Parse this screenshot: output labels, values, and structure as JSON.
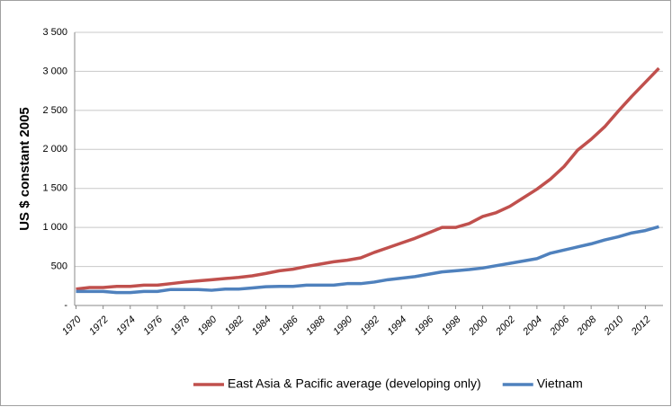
{
  "chart_data": {
    "type": "line",
    "y_label": "US $ constant 2005",
    "x": [
      1970,
      1971,
      1972,
      1973,
      1974,
      1975,
      1976,
      1977,
      1978,
      1979,
      1980,
      1981,
      1982,
      1983,
      1984,
      1985,
      1986,
      1987,
      1988,
      1989,
      1990,
      1991,
      1992,
      1993,
      1994,
      1995,
      1996,
      1997,
      1998,
      1999,
      2000,
      2001,
      2002,
      2003,
      2004,
      2005,
      2006,
      2007,
      2008,
      2009,
      2010,
      2011,
      2012,
      2013
    ],
    "series": [
      {
        "name": "East Asia & Pacific average (developing only)",
        "color": "#c0504d",
        "values": [
          210,
          230,
          230,
          245,
          245,
          260,
          260,
          280,
          300,
          315,
          330,
          345,
          360,
          380,
          410,
          445,
          465,
          500,
          530,
          560,
          580,
          610,
          680,
          740,
          800,
          860,
          930,
          1000,
          1000,
          1050,
          1140,
          1190,
          1270,
          1380,
          1490,
          1620,
          1780,
          1990,
          2130,
          2290,
          2490,
          2680,
          2860,
          3040
        ]
      },
      {
        "name": "Vietnam",
        "color": "#4f81bd",
        "values": [
          180,
          180,
          180,
          165,
          165,
          180,
          180,
          205,
          205,
          205,
          195,
          210,
          210,
          225,
          240,
          245,
          245,
          260,
          260,
          260,
          280,
          280,
          300,
          330,
          350,
          370,
          400,
          430,
          445,
          460,
          480,
          510,
          540,
          570,
          600,
          670,
          710,
          750,
          790,
          840,
          880,
          930,
          960,
          1010
        ]
      }
    ],
    "xlim": [
      1969.9,
      2013.3
    ],
    "xticks": [
      1970,
      1972,
      1974,
      1976,
      1978,
      1980,
      1982,
      1984,
      1986,
      1988,
      1990,
      1992,
      1994,
      1996,
      1998,
      2000,
      2002,
      2004,
      2006,
      2008,
      2010,
      2012
    ],
    "ylim": [
      0,
      3500
    ],
    "yticks": [
      {
        "value": 0,
        "label": "-"
      },
      500,
      {
        "value": 1000,
        "label": "1 000"
      },
      {
        "value": 1500,
        "label": "1 500"
      },
      {
        "value": 2000,
        "label": "2 000"
      },
      {
        "value": 2500,
        "label": "2 500"
      },
      {
        "value": 3000,
        "label": "3 000"
      },
      {
        "value": 3500,
        "label": "3 500"
      }
    ],
    "grid": true,
    "legend": "bottom"
  }
}
